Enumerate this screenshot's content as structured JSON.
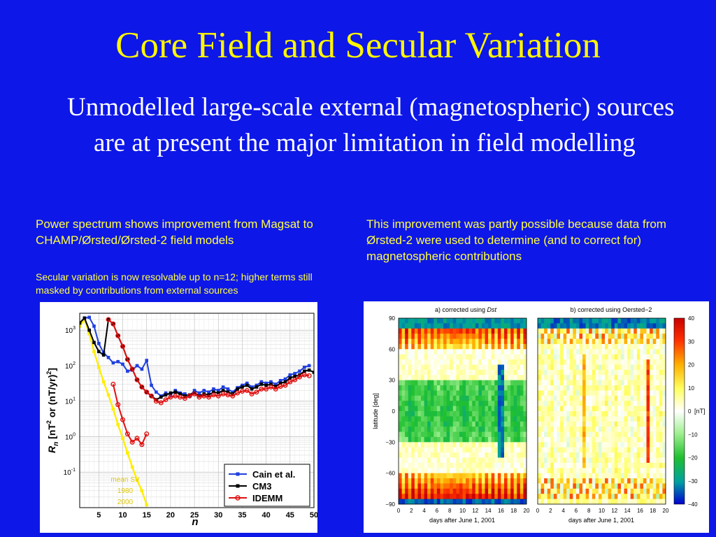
{
  "slide": {
    "title": "Core Field and Secular Variation",
    "bullet": "Unmodelled large-scale external (magnetospheric) sources are at present the major limitation in field modelling",
    "caption_left": "Power spectrum shows improvement from Magsat to CHAMP/Ørsted/Ørsted-2 field models",
    "caption_left_sub": "Secular variation is now resolvable up to n=12; higher terms still masked by contributions from external sources",
    "caption_right": "This improvement was partly possible because data from Ørsted-2 were used to determine (and to correct for) magnetospheric contributions"
  },
  "colors": {
    "background": "#0d17e8",
    "title": "#fff600",
    "caption": "#ffff44",
    "cain": "#1f3fe0",
    "cm3": "#000000",
    "idemm": "#e01010",
    "mean_sv": "#ffee00"
  },
  "left_chart": {
    "ylabel_parts": [
      "R",
      "n",
      " [nT",
      "2",
      " or (nT/yr)",
      "2",
      "]"
    ],
    "xlabel": "n",
    "legend": [
      "Cain et al.",
      "CM3",
      "IDEMM"
    ],
    "annot": [
      "mean SV",
      "1980",
      "2000"
    ]
  },
  "right_chart": {
    "title_a_prefix": "a) corrected using ",
    "title_a_italic": "Dst",
    "title_b": "b) corrected using Oersted−2",
    "ylabel": "latitude [deg]",
    "xlabel": "days after June 1, 2001",
    "unit": "[nT]"
  },
  "chart_data": [
    {
      "type": "line",
      "title": "",
      "xlabel": "n",
      "ylabel": "Rn [nT2 or (nT/yr)2]",
      "yscale": "log",
      "xlim": [
        1,
        50
      ],
      "ylim": [
        0.01,
        3000
      ],
      "x_ticks": [
        "5",
        "10",
        "15",
        "20",
        "25",
        "30",
        "35",
        "40",
        "45",
        "50"
      ],
      "y_ticks": [
        "10-1",
        "100",
        "101",
        "102",
        "103"
      ],
      "grid": true,
      "legend_position": "bottom-right",
      "series": [
        {
          "name": "Cain et al.",
          "x": [
            1,
            2,
            3,
            4,
            5,
            6,
            7,
            8,
            9,
            10,
            11,
            12,
            13,
            14,
            15,
            16,
            17,
            18,
            19,
            20,
            21,
            22,
            23,
            24,
            25,
            26,
            27,
            28,
            29,
            30,
            31,
            32,
            33,
            34,
            35,
            36,
            37,
            38,
            39,
            40,
            41,
            42,
            43,
            44,
            45,
            46,
            47,
            48,
            49
          ],
          "values": [
            1600,
            2200,
            2300,
            1300,
            420,
            230,
            170,
            120,
            130,
            110,
            70,
            75,
            100,
            80,
            140,
            28,
            18,
            14,
            17,
            15,
            20,
            17,
            16,
            14,
            20,
            17,
            20,
            18,
            22,
            20,
            25,
            22,
            18,
            24,
            28,
            32,
            25,
            28,
            35,
            32,
            35,
            30,
            38,
            42,
            55,
            60,
            70,
            90,
            100
          ]
        },
        {
          "name": "CM3",
          "x": [
            1,
            2,
            3,
            4,
            5,
            6,
            7,
            8,
            9,
            10,
            11,
            12,
            13,
            14,
            15,
            16,
            17,
            18,
            19,
            20,
            21,
            22,
            23,
            24,
            25,
            26,
            27,
            28,
            29,
            30,
            31,
            32,
            33,
            34,
            35,
            36,
            37,
            38,
            39,
            40,
            41,
            42,
            43,
            44,
            45,
            46,
            47,
            48,
            49,
            50
          ],
          "values": [
            1600,
            2200,
            1000,
            450,
            250,
            200,
            2000,
            1500,
            700,
            350,
            150,
            80,
            40,
            25,
            18,
            14,
            11,
            13,
            15,
            17,
            18,
            16,
            14,
            15,
            17,
            14,
            16,
            15,
            18,
            17,
            20,
            18,
            16,
            22,
            25,
            28,
            22,
            25,
            30,
            28,
            30,
            26,
            32,
            35,
            45,
            50,
            55,
            70,
            75,
            65
          ]
        },
        {
          "name": "IDEMM",
          "x": [
            7,
            8,
            9,
            10,
            11,
            12,
            13,
            14,
            15,
            16,
            17,
            18,
            19,
            20,
            21,
            22,
            23,
            24,
            25,
            26,
            27,
            28,
            29,
            30,
            31,
            32,
            33,
            34,
            35,
            36,
            37,
            38,
            39,
            40,
            41,
            42,
            43,
            44,
            45,
            46,
            47,
            48,
            49
          ],
          "values": [
            2000,
            1500,
            700,
            350,
            150,
            80,
            40,
            25,
            18,
            14,
            10,
            9,
            11,
            13,
            14,
            13,
            12,
            14,
            16,
            13,
            14,
            13,
            15,
            14,
            16,
            15,
            14,
            17,
            19,
            20,
            16,
            18,
            22,
            22,
            25,
            22,
            26,
            28,
            35,
            40,
            48,
            55,
            52
          ]
        },
        {
          "name": "IDEMM (SV)",
          "x": [
            8,
            9,
            10,
            11,
            12,
            13,
            14,
            15
          ],
          "values": [
            30,
            8,
            3,
            1.2,
            0.7,
            0.9,
            0.6,
            1.2
          ]
        },
        {
          "name": "mean SV 1980-2000",
          "x": [
            1,
            2,
            3,
            4,
            5,
            6,
            7,
            8,
            9,
            10,
            11,
            12,
            13,
            14,
            15
          ],
          "values": [
            1300,
            2000,
            800,
            250,
            90,
            35,
            15,
            6,
            2.2,
            0.9,
            0.35,
            0.14,
            0.06,
            0.03,
            0.012
          ]
        }
      ]
    },
    {
      "type": "heatmap",
      "title": "a) corrected using Dst",
      "xlabel": "days after June 1, 2001",
      "ylabel": "latitude [deg]",
      "xlim": [
        0,
        20
      ],
      "ylim": [
        -90,
        90
      ],
      "x_ticks": [
        "0",
        "2",
        "4",
        "6",
        "8",
        "10",
        "12",
        "14",
        "16",
        "18",
        "20"
      ],
      "y_ticks": [
        "90",
        "60",
        "30",
        "0",
        "−30",
        "−60",
        "−90"
      ]
    },
    {
      "type": "heatmap",
      "title": "b) corrected using Oersted−2",
      "xlabel": "days after June 1, 2001",
      "xlim": [
        0,
        20
      ],
      "ylim": [
        -90,
        90
      ],
      "x_ticks": [
        "0",
        "2",
        "4",
        "6",
        "8",
        "10",
        "12",
        "14",
        "16",
        "18",
        "20"
      ],
      "colorbar_ticks": [
        "40",
        "30",
        "20",
        "10",
        "0",
        "−10",
        "−20",
        "−30",
        "−40"
      ],
      "colorbar_unit": "[nT]"
    }
  ]
}
